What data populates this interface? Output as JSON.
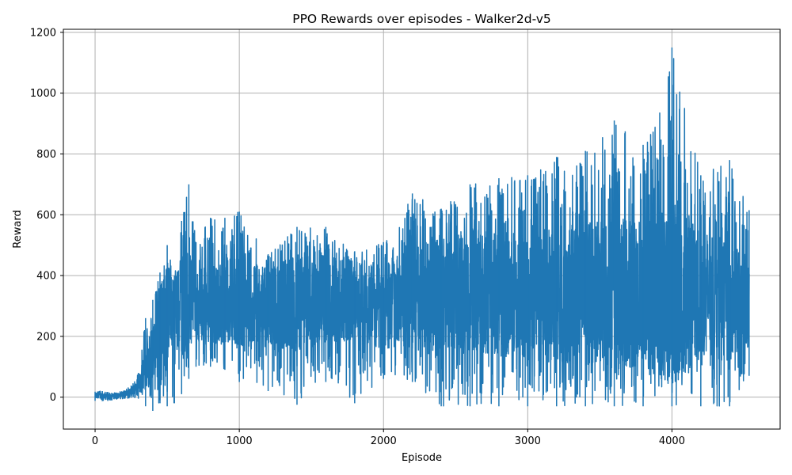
{
  "chart_data": {
    "type": "line",
    "title": "PPO Rewards over episodes - Walker2d-v5",
    "xlabel": "Episode",
    "ylabel": "Reward",
    "xlim": [
      -220,
      4750
    ],
    "ylim": [
      -105,
      1210
    ],
    "xticks": [
      0,
      1000,
      2000,
      3000,
      4000
    ],
    "yticks": [
      0,
      200,
      400,
      600,
      800,
      1000,
      1200
    ],
    "grid": true,
    "legend": "none",
    "series_color": "#1f77b4",
    "grid_color": "#b0b0b0",
    "series": [
      {
        "x": [
          0,
          50,
          100,
          150,
          200,
          250,
          300,
          350,
          400,
          450,
          500,
          550,
          600,
          650,
          700,
          800,
          900,
          1000,
          1200,
          1400,
          1600,
          1800,
          2000,
          2200,
          2400,
          2600,
          2800,
          3000,
          3200,
          3400,
          3600,
          3800,
          4000,
          4200,
          4400,
          4535
        ],
        "y_high": [
          18,
          20,
          15,
          14,
          22,
          38,
          80,
          260,
          320,
          410,
          500,
          400,
          580,
          700,
          510,
          590,
          590,
          610,
          470,
          560,
          560,
          480,
          510,
          670,
          620,
          700,
          720,
          730,
          790,
          810,
          910,
          830,
          1150,
          730,
          780,
          615
        ],
        "y_low": [
          -12,
          -13,
          -10,
          -8,
          -5,
          -2,
          -5,
          -30,
          -45,
          -20,
          -30,
          -20,
          10,
          60,
          100,
          100,
          90,
          50,
          20,
          -25,
          50,
          -20,
          60,
          50,
          -30,
          -30,
          -30,
          -30,
          -30,
          -30,
          -30,
          -30,
          -30,
          -30,
          -30,
          70
        ],
        "y_typical": [
          5,
          3,
          4,
          6,
          10,
          20,
          30,
          100,
          150,
          250,
          300,
          280,
          300,
          320,
          300,
          300,
          320,
          310,
          300,
          310,
          320,
          320,
          310,
          330,
          340,
          350,
          340,
          340,
          340,
          340,
          350,
          340,
          350,
          340,
          340,
          300
        ]
      }
    ]
  }
}
